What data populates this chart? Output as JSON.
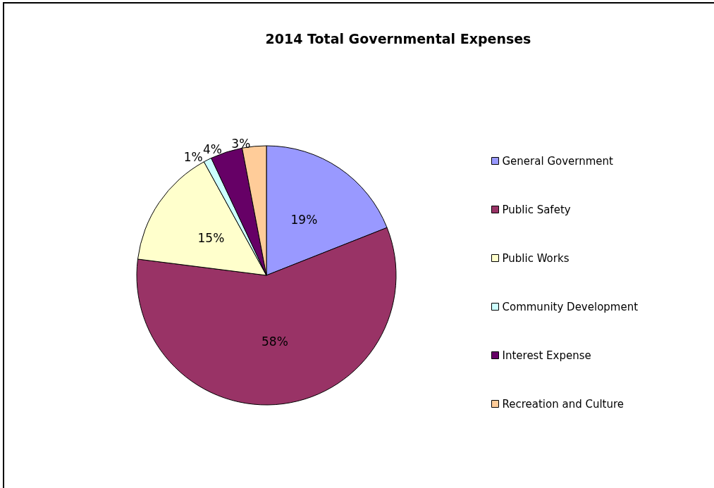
{
  "chart_data": {
    "type": "pie",
    "title": "2014 Total Governmental Expenses",
    "categories": [
      "General Government",
      "Public Safety",
      "Public Works",
      "Community Development",
      "Interest Expense",
      "Recreation and Culture"
    ],
    "values": [
      19,
      58,
      15,
      1,
      4,
      3
    ],
    "value_labels": [
      "19%",
      "58%",
      "15%",
      "1%",
      "4%",
      "3%"
    ],
    "colors": [
      "#9999ff",
      "#993366",
      "#ffffcc",
      "#ccffff",
      "#660066",
      "#ffcc99"
    ],
    "legend": "right"
  }
}
